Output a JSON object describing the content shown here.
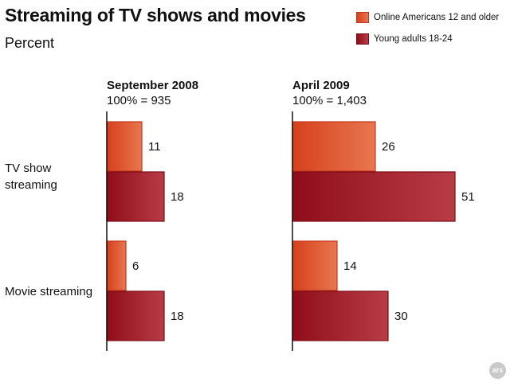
{
  "chart_data": {
    "type": "bar",
    "title": "Streaming of TV shows and movies",
    "subtitle": "Percent",
    "categories": [
      "TV show streaming",
      "Movie streaming"
    ],
    "category_display": [
      [
        "TV show",
        "streaming"
      ],
      [
        "Movie streaming"
      ]
    ],
    "series": [
      {
        "name": "Online Americans 12 and older",
        "color": "#e05a33"
      },
      {
        "name": "Young adults 18-24",
        "color": "#a31a26"
      }
    ],
    "panels": [
      {
        "title": "September 2008",
        "base": "100% = 935",
        "values": [
          [
            11,
            18
          ],
          [
            6,
            18
          ]
        ]
      },
      {
        "title": "April 2009",
        "base": "100% = 1,403",
        "values": [
          [
            26,
            51
          ],
          [
            14,
            30
          ]
        ]
      }
    ],
    "orientation": "horizontal",
    "grid": false,
    "legend_position": "top-right"
  },
  "watermark": "ars"
}
